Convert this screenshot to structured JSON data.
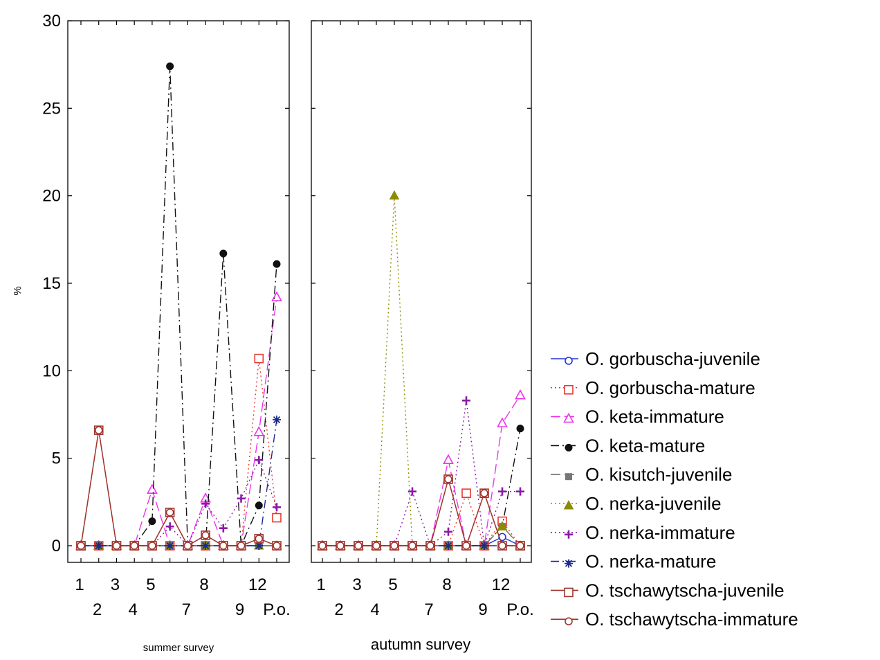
{
  "chart_data": {
    "type": "line",
    "ylabel": "%",
    "ylim": [
      0,
      30
    ],
    "y_ticks": [
      "0",
      "5",
      "10",
      "15",
      "20",
      "25",
      "30"
    ],
    "x_positions": [
      "1",
      "2",
      "3",
      "4",
      "5",
      "6",
      "7",
      "8",
      "9",
      "10",
      "12",
      "P.o."
    ],
    "x_tick_labels_row1": [
      "1",
      "3",
      "5",
      "8",
      "12"
    ],
    "x_tick_labels_row2": [
      "2",
      "4",
      "7",
      "9",
      "P.o."
    ],
    "panels": [
      {
        "title": "summer survey",
        "series": [
          {
            "name": "O. gorbuscha-juvenile",
            "values": [
              0,
              0,
              0,
              0,
              0,
              0,
              0,
              0,
              0,
              0,
              0,
              0
            ]
          },
          {
            "name": "O. gorbuscha-mature",
            "values": [
              0,
              0,
              0,
              0,
              0,
              0,
              0,
              0,
              0,
              0,
              10.7,
              1.6
            ]
          },
          {
            "name": "O. keta-immature",
            "values": [
              0,
              0,
              0,
              0,
              3.2,
              0,
              0,
              2.7,
              0,
              0,
              6.5,
              14.2
            ]
          },
          {
            "name": "O. keta-mature",
            "values": [
              0,
              0,
              0,
              0,
              1.4,
              27.4,
              0,
              0,
              16.7,
              0,
              2.3,
              16.1
            ]
          },
          {
            "name": "O. kisutch-juvenile",
            "values": [
              0,
              0,
              0,
              0,
              0,
              0,
              0,
              0,
              0,
              0,
              0,
              0
            ]
          },
          {
            "name": "O. nerka-juvenile",
            "values": [
              0,
              0,
              0,
              0,
              0,
              0,
              0,
              0,
              0,
              0,
              0,
              0
            ]
          },
          {
            "name": "O. nerka-immature",
            "values": [
              0,
              0,
              0,
              0,
              0,
              1.1,
              0,
              2.4,
              1.0,
              2.7,
              4.9,
              2.2
            ]
          },
          {
            "name": "O. nerka-mature",
            "values": [
              0,
              0,
              0,
              0,
              0,
              0,
              0,
              0,
              0,
              0,
              0,
              7.2
            ]
          },
          {
            "name": "O. tschawytscha-juvenile",
            "values": [
              0,
              6.6,
              0,
              0,
              0,
              1.9,
              0,
              0.6,
              0,
              0,
              0.4,
              0
            ]
          },
          {
            "name": "O. tschawytscha-immature",
            "values": [
              0,
              6.6,
              0,
              0,
              0,
              1.9,
              0,
              0.6,
              0,
              0,
              0.4,
              0
            ]
          }
        ]
      },
      {
        "title": "autumn survey",
        "series": [
          {
            "name": "O. gorbuscha-juvenile",
            "values": [
              0,
              0,
              0,
              0,
              0,
              0,
              0,
              0,
              0,
              0,
              0.5,
              0
            ]
          },
          {
            "name": "O. gorbuscha-mature",
            "values": [
              0,
              0,
              0,
              0,
              0,
              0,
              0,
              0,
              3.0,
              0,
              1.4,
              0
            ]
          },
          {
            "name": "O. keta-immature",
            "values": [
              0,
              0,
              0,
              0,
              0,
              0,
              0,
              4.9,
              0,
              0,
              7.0,
              8.6
            ]
          },
          {
            "name": "O. keta-mature",
            "values": [
              0,
              0,
              0,
              0,
              0,
              0,
              0,
              0,
              0,
              0,
              1.1,
              6.7
            ]
          },
          {
            "name": "O. kisutch-juvenile",
            "values": [
              0,
              0,
              0,
              0,
              0,
              0,
              0,
              0,
              0,
              0,
              1.1,
              0
            ]
          },
          {
            "name": "O. nerka-juvenile",
            "values": [
              0,
              0,
              0,
              0,
              20.0,
              0,
              0,
              0,
              0,
              0,
              1.1,
              0
            ]
          },
          {
            "name": "O. nerka-immature",
            "values": [
              0,
              0,
              0,
              0,
              0,
              3.1,
              0,
              0.8,
              8.3,
              0,
              3.1,
              3.1
            ]
          },
          {
            "name": "O. nerka-mature",
            "values": [
              0,
              0,
              0,
              0,
              0,
              0,
              0,
              0,
              0,
              0,
              0,
              0
            ]
          },
          {
            "name": "O. tschawytscha-juvenile",
            "values": [
              0,
              0,
              0,
              0,
              0,
              0,
              0,
              3.8,
              0,
              3.0,
              0,
              0
            ]
          },
          {
            "name": "O. tschawytscha-immature",
            "values": [
              0,
              0,
              0,
              0,
              0,
              0,
              0,
              3.8,
              0,
              3.0,
              0,
              0
            ]
          }
        ]
      }
    ],
    "legend": [
      {
        "name": "O. gorbuscha-juvenile",
        "color": "#1f35d6",
        "marker": "circle-open",
        "dash": "solid"
      },
      {
        "name": "O. gorbuscha-mature",
        "color": "#e8392e",
        "marker": "square-open",
        "dash": "dotted"
      },
      {
        "name": "O. keta-immature",
        "color": "#ee33ee",
        "marker": "triangle-open",
        "dash": "longdash"
      },
      {
        "name": "O. keta-mature",
        "color": "#111111",
        "marker": "circle-filled",
        "dash": "dashdot"
      },
      {
        "name": "O. kisutch-juvenile",
        "color": "#777777",
        "marker": "square-filled",
        "dash": "longdash"
      },
      {
        "name": "O. nerka-juvenile",
        "color": "#8c8c00",
        "marker": "triangle-filled",
        "dash": "dotted"
      },
      {
        "name": "O. nerka-immature",
        "color": "#8a1aa6",
        "marker": "plus",
        "dash": "dotted"
      },
      {
        "name": "O. nerka-mature",
        "color": "#1a2a8c",
        "marker": "asterisk",
        "dash": "dashdot"
      },
      {
        "name": "O. tschawytscha-juvenile",
        "color": "#a0362e",
        "marker": "square-open",
        "dash": "solid"
      },
      {
        "name": "O. tschawytscha-immature",
        "color": "#a0362e",
        "marker": "circle-open",
        "dash": "solid"
      }
    ],
    "legend_placement": "right",
    "grid": false
  }
}
